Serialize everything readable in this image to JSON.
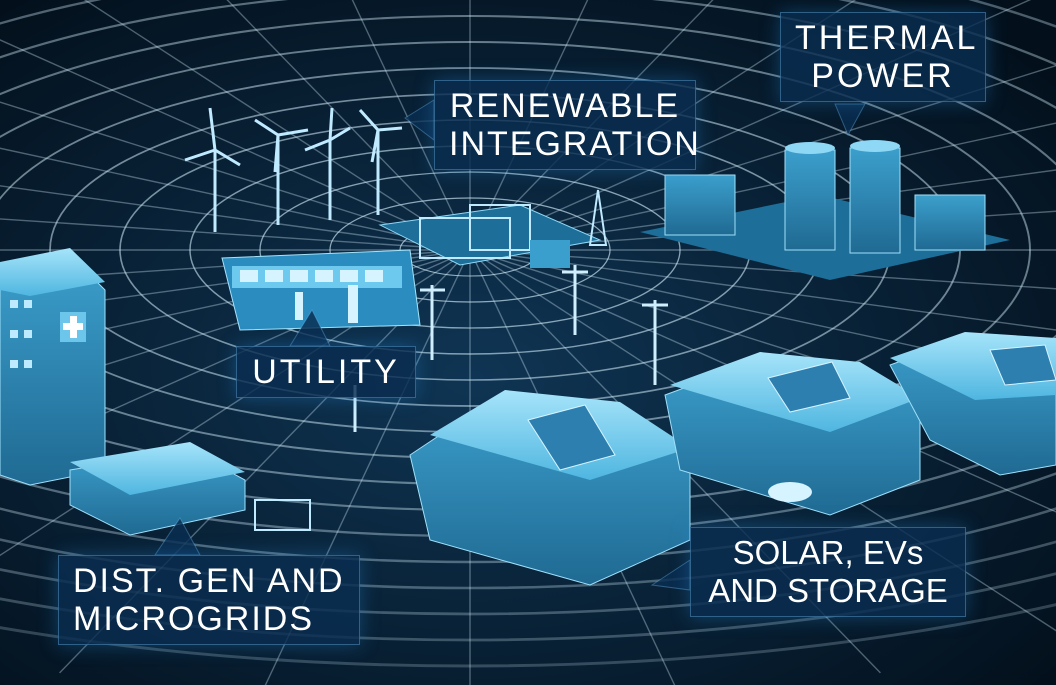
{
  "labels": {
    "thermal": [
      "THERMAL",
      "POWER"
    ],
    "renewable": [
      "RENEWABLE",
      "INTEGRATION"
    ],
    "utility": [
      "UTILITY"
    ],
    "distgen": [
      "DIST. GEN AND",
      "MICROGRIDS"
    ],
    "solar": [
      "SOLAR, EVs",
      "AND STORAGE"
    ]
  },
  "colors": {
    "background": "#04121f",
    "grid": "#d8f2ff",
    "building": "#3aa9d8",
    "building_light": "#8ed8f5",
    "callout_bg": "#0a2d50",
    "text": "#ffffff"
  }
}
